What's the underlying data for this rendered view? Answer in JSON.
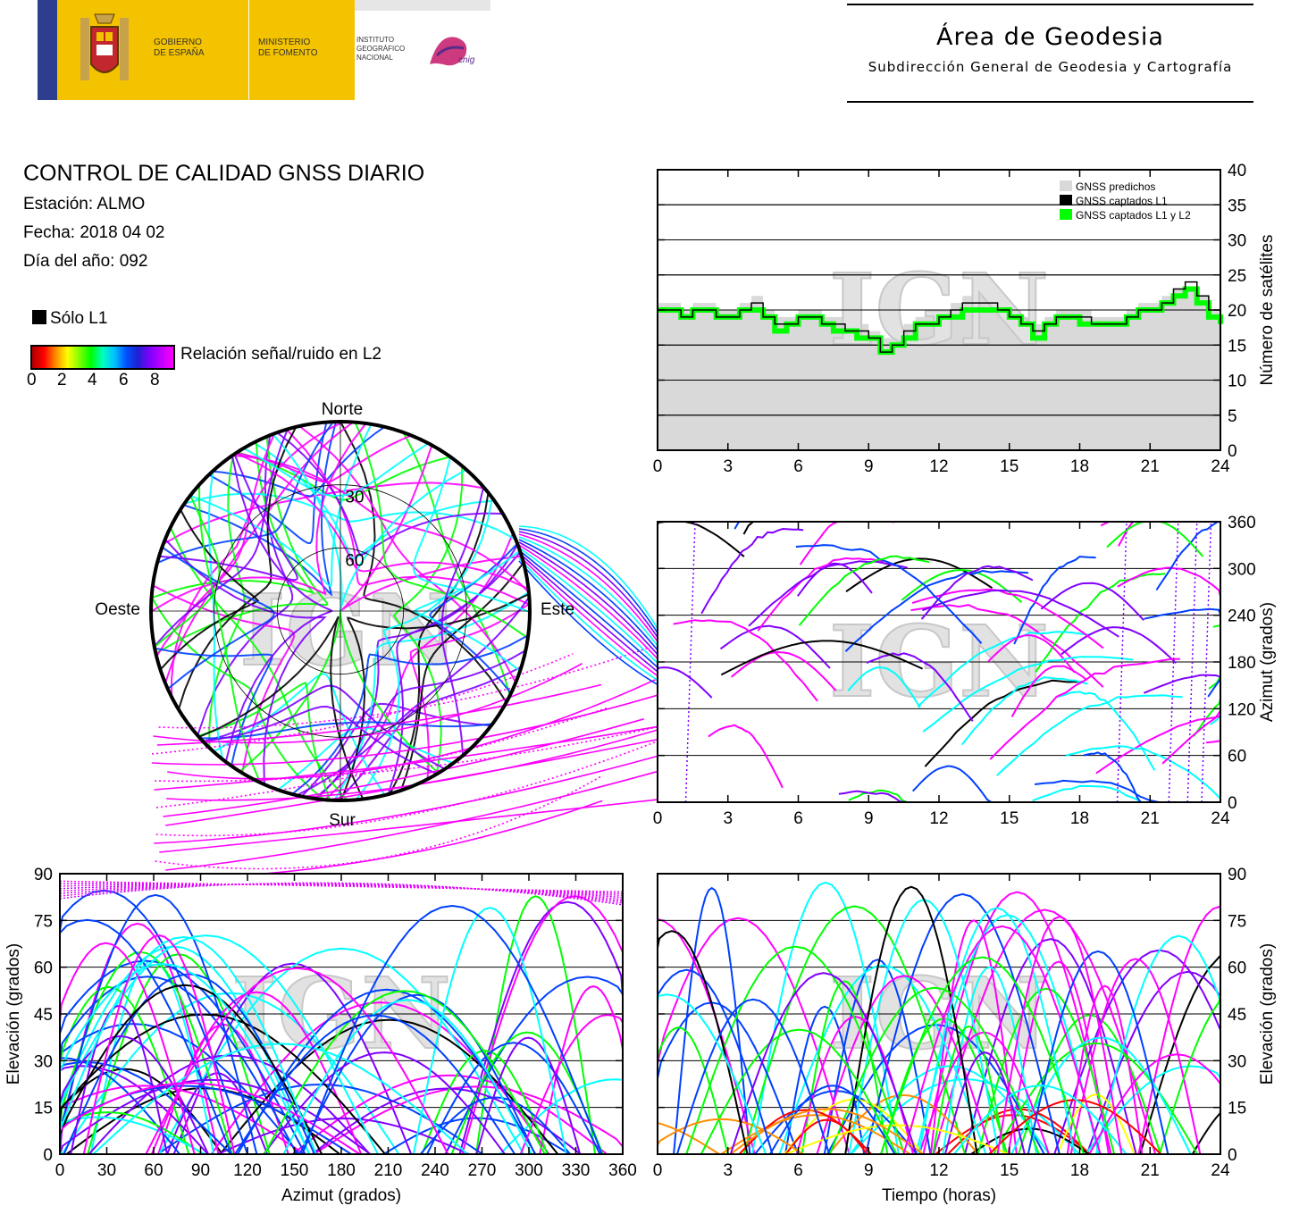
{
  "header": {
    "gov_line1": "GOBIERNO",
    "gov_line2": "DE ESPAÑA",
    "min_line1": "MINISTERIO",
    "min_line2": "DE FOMENTO",
    "ign_line1": "INSTITUTO",
    "ign_line2": "GEOGRÁFICO",
    "ign_line3": "NACIONAL",
    "cnig": "cnig",
    "area_title": "Área de Geodesia",
    "area_subtitle": "Subdirección General de Geodesia y Cartografía"
  },
  "report": {
    "title": "CONTROL DE CALIDAD GNSS DIARIO",
    "station": "Estación: ALMO",
    "date": "Fecha: 2018 04 02",
    "doy": "Día del año: 092"
  },
  "legend": {
    "l1_only": "Sólo L1",
    "snr_label": "Relación señal/ruido en L2",
    "snr_ticks": [
      "0",
      "2",
      "4",
      "6",
      "8"
    ]
  },
  "watermark": "IGN",
  "colors": {
    "predicted": "#d9d9d9",
    "l1": "#000000",
    "l1l2": "#00ff00",
    "snr_scale": [
      "#ff0000",
      "#ff8c00",
      "#ffff00",
      "#00ff00",
      "#00ffff",
      "#0040ff",
      "#8000ff",
      "#ff00ff"
    ]
  },
  "chart_data": [
    {
      "id": "satellite-count",
      "type": "area",
      "xlabel": "",
      "ylabel": "Número de satélites",
      "xlim": [
        0,
        24
      ],
      "ylim": [
        0,
        40
      ],
      "xticks": [
        "0",
        "3",
        "6",
        "9",
        "12",
        "15",
        "18",
        "21",
        "24"
      ],
      "yticks": [
        "0",
        "5",
        "10",
        "15",
        "20",
        "25",
        "30",
        "35",
        "40"
      ],
      "legend": [
        "GNSS predichos",
        "GNSS captados L1",
        "GNSS captados L1 y L2"
      ],
      "legend_position": "top-right",
      "grid": true,
      "x": [
        0,
        0.5,
        1,
        1.5,
        2,
        2.5,
        3,
        3.5,
        4,
        4.5,
        5,
        5.5,
        6,
        6.5,
        7,
        7.5,
        8,
        8.5,
        9,
        9.5,
        10,
        10.5,
        11,
        11.5,
        12,
        12.5,
        13,
        13.5,
        14,
        14.5,
        15,
        15.5,
        16,
        16.5,
        17,
        17.5,
        18,
        18.5,
        19,
        19.5,
        20,
        20.5,
        21,
        21.5,
        22,
        22.5,
        23,
        23.5,
        24
      ],
      "series": [
        {
          "name": "GNSS predichos",
          "values": [
            21,
            21,
            20,
            21,
            21,
            20,
            20,
            21,
            22,
            20,
            19,
            19,
            20,
            20,
            19,
            19,
            18,
            18,
            17,
            16,
            17,
            18,
            19,
            19,
            20,
            21,
            22,
            22,
            22,
            21,
            20,
            19,
            18,
            19,
            20,
            20,
            20,
            19,
            19,
            19,
            20,
            21,
            21,
            22,
            23,
            23,
            22,
            20,
            20
          ]
        },
        {
          "name": "GNSS captados L1",
          "values": [
            20,
            20,
            19,
            20,
            20,
            19,
            19,
            20,
            21,
            19,
            18,
            18,
            19,
            19,
            18,
            18,
            17,
            17,
            16,
            14,
            15,
            17,
            18,
            18,
            19,
            20,
            21,
            21,
            21,
            20,
            19,
            18,
            17,
            18,
            19,
            19,
            19,
            18,
            18,
            18,
            19,
            20,
            20,
            21,
            23,
            24,
            22,
            20,
            19
          ]
        },
        {
          "name": "GNSS captados L1 y L2",
          "values": [
            20,
            20,
            19,
            20,
            20,
            19,
            19,
            20,
            20,
            19,
            17,
            18,
            19,
            19,
            18,
            17,
            17,
            16,
            16,
            14,
            15,
            16,
            18,
            18,
            19,
            19,
            20,
            20,
            20,
            20,
            19,
            18,
            16,
            18,
            19,
            19,
            18,
            18,
            18,
            18,
            19,
            20,
            20,
            21,
            22,
            23,
            21,
            19,
            18
          ]
        }
      ]
    },
    {
      "id": "skyplot",
      "type": "scatter",
      "projection": "polar",
      "directions": {
        "north": "Norte",
        "south": "Sur",
        "east": "Este",
        "west": "Oeste"
      },
      "elevation_rings": [
        "30",
        "60"
      ]
    },
    {
      "id": "azimuth-vs-time",
      "type": "scatter",
      "xlabel": "",
      "ylabel": "Azimut (grados)",
      "xlim": [
        0,
        24
      ],
      "ylim": [
        0,
        360
      ],
      "xticks": [
        "0",
        "3",
        "6",
        "9",
        "12",
        "15",
        "18",
        "21",
        "24"
      ],
      "yticks": [
        "0",
        "60",
        "120",
        "180",
        "240",
        "300",
        "360"
      ],
      "grid": true
    },
    {
      "id": "elevation-vs-azimuth",
      "type": "scatter",
      "xlabel": "Azimut (grados)",
      "ylabel": "Elevación (grados)",
      "xlim": [
        0,
        360
      ],
      "ylim": [
        0,
        90
      ],
      "xticks": [
        "0",
        "30",
        "60",
        "90",
        "120",
        "150",
        "180",
        "210",
        "240",
        "270",
        "300",
        "330",
        "360"
      ],
      "yticks": [
        "0",
        "15",
        "30",
        "45",
        "60",
        "75",
        "90"
      ],
      "grid": true
    },
    {
      "id": "elevation-vs-time",
      "type": "line",
      "xlabel": "Tiempo (horas)",
      "ylabel": "Elevación (grados)",
      "xlim": [
        0,
        24
      ],
      "ylim": [
        0,
        90
      ],
      "xticks": [
        "0",
        "3",
        "6",
        "9",
        "12",
        "15",
        "18",
        "21",
        "24"
      ],
      "yticks": [
        "0",
        "15",
        "30",
        "45",
        "60",
        "75",
        "90"
      ],
      "grid": true
    }
  ]
}
